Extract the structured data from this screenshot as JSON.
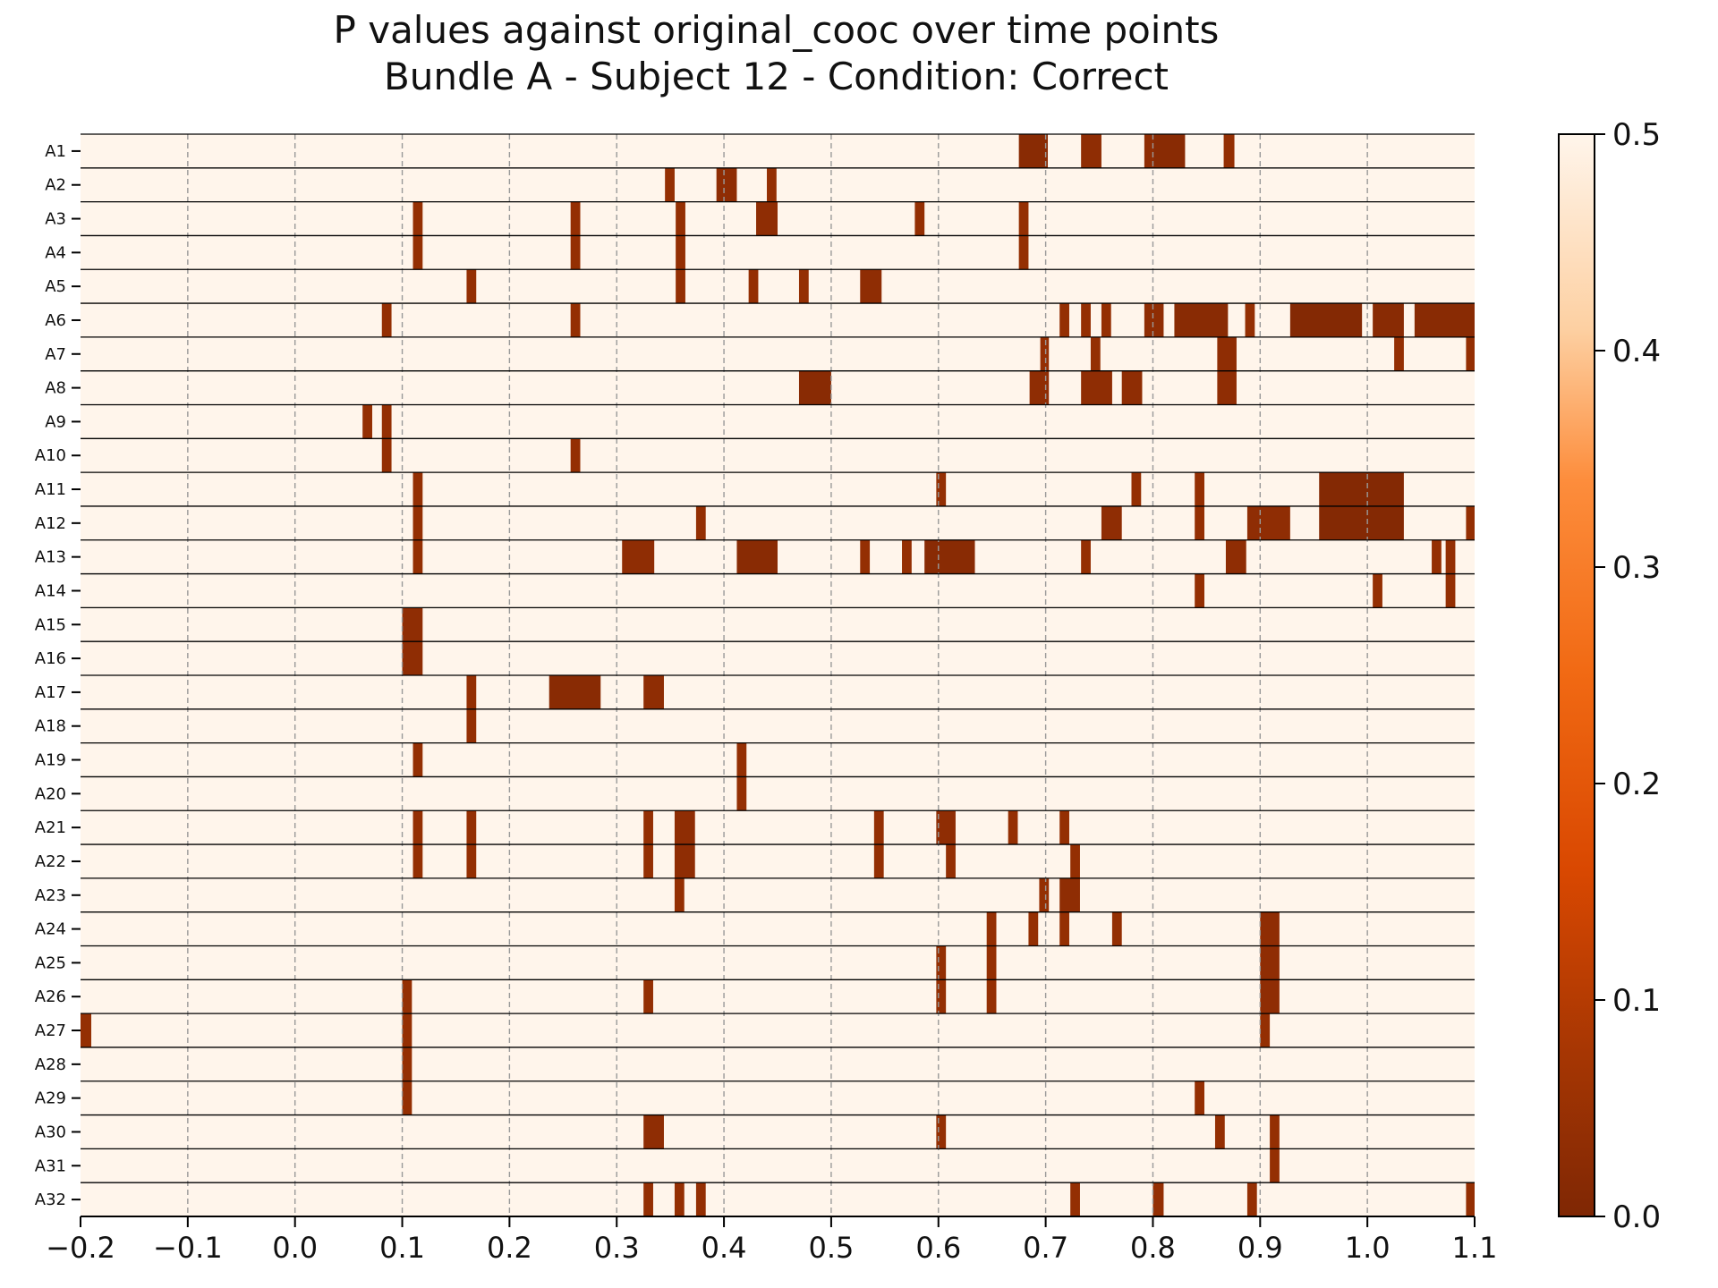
{
  "chart_data": {
    "type": "heatmap",
    "title_lines": [
      "P values against original_cooc over time points",
      "Bundle A - Subject 12 - Condition: Correct"
    ],
    "xlabel": "",
    "ylabel": "",
    "xlim": [
      -0.2,
      1.1
    ],
    "x_ticks": [
      -0.2,
      -0.1,
      0.0,
      0.1,
      0.2,
      0.3,
      0.4,
      0.5,
      0.6,
      0.7,
      0.8,
      0.9,
      1.0,
      1.1
    ],
    "x_tick_labels": [
      "−0.2",
      "−0.1",
      "0.0",
      "0.1",
      "0.2",
      "0.3",
      "0.4",
      "0.5",
      "0.6",
      "0.7",
      "0.8",
      "0.9",
      "1.0",
      "1.1"
    ],
    "grid": "dashed vertical at x ticks",
    "colormap": "Oranges_r",
    "colors": {
      "low": "#7f2704",
      "mid": "#f16913",
      "high": "#fff5eb"
    },
    "colorbar": {
      "range": [
        0.0,
        0.5
      ],
      "ticks": [
        0.0,
        0.1,
        0.2,
        0.3,
        0.4,
        0.5
      ],
      "tick_labels": [
        "0.0",
        "0.1",
        "0.2",
        "0.3",
        "0.4",
        "0.5"
      ]
    },
    "background_value": 0.5,
    "rows": [
      {
        "label": "A1",
        "segments": [
          [
            0.675,
            0.702,
            0.02
          ],
          [
            0.733,
            0.752,
            0.03
          ],
          [
            0.792,
            0.8,
            0.03
          ],
          [
            0.8,
            0.83,
            0.02
          ],
          [
            0.866,
            0.876,
            0.04
          ]
        ]
      },
      {
        "label": "A2",
        "segments": [
          [
            0.345,
            0.354,
            0.04
          ],
          [
            0.393,
            0.412,
            0.03
          ],
          [
            0.44,
            0.449,
            0.04
          ]
        ]
      },
      {
        "label": "A3",
        "segments": [
          [
            0.11,
            0.119,
            0.04
          ],
          [
            0.257,
            0.266,
            0.04
          ],
          [
            0.355,
            0.364,
            0.04
          ],
          [
            0.43,
            0.45,
            0.03
          ],
          [
            0.578,
            0.587,
            0.04
          ],
          [
            0.675,
            0.684,
            0.04
          ]
        ]
      },
      {
        "label": "A4",
        "segments": [
          [
            0.11,
            0.119,
            0.04
          ],
          [
            0.257,
            0.266,
            0.04
          ],
          [
            0.355,
            0.364,
            0.04
          ],
          [
            0.675,
            0.684,
            0.04
          ]
        ]
      },
      {
        "label": "A5",
        "segments": [
          [
            0.16,
            0.169,
            0.04
          ],
          [
            0.355,
            0.364,
            0.04
          ],
          [
            0.423,
            0.432,
            0.04
          ],
          [
            0.47,
            0.479,
            0.04
          ],
          [
            0.527,
            0.547,
            0.03
          ]
        ]
      },
      {
        "label": "A6",
        "segments": [
          [
            0.081,
            0.09,
            0.04
          ],
          [
            0.257,
            0.266,
            0.04
          ],
          [
            0.713,
            0.722,
            0.04
          ],
          [
            0.733,
            0.742,
            0.04
          ],
          [
            0.752,
            0.761,
            0.04
          ],
          [
            0.792,
            0.81,
            0.03
          ],
          [
            0.82,
            0.87,
            0.02
          ],
          [
            0.886,
            0.895,
            0.04
          ],
          [
            0.928,
            0.995,
            0.01
          ],
          [
            1.005,
            1.034,
            0.02
          ],
          [
            1.044,
            1.1,
            0.02
          ]
        ]
      },
      {
        "label": "A7",
        "segments": [
          [
            0.695,
            0.703,
            0.04
          ],
          [
            0.742,
            0.751,
            0.04
          ],
          [
            0.86,
            0.878,
            0.03
          ],
          [
            1.025,
            1.034,
            0.04
          ],
          [
            1.092,
            1.1,
            0.04
          ]
        ]
      },
      {
        "label": "A8",
        "segments": [
          [
            0.47,
            0.5,
            0.02
          ],
          [
            0.685,
            0.703,
            0.03
          ],
          [
            0.733,
            0.762,
            0.03
          ],
          [
            0.771,
            0.79,
            0.03
          ],
          [
            0.86,
            0.878,
            0.03
          ]
        ]
      },
      {
        "label": "A9",
        "segments": [
          [
            0.063,
            0.072,
            0.04
          ],
          [
            0.081,
            0.09,
            0.04
          ]
        ]
      },
      {
        "label": "A10",
        "segments": [
          [
            0.081,
            0.09,
            0.04
          ],
          [
            0.257,
            0.266,
            0.04
          ]
        ]
      },
      {
        "label": "A11",
        "segments": [
          [
            0.11,
            0.119,
            0.04
          ],
          [
            0.598,
            0.607,
            0.04
          ],
          [
            0.78,
            0.789,
            0.04
          ],
          [
            0.839,
            0.848,
            0.04
          ],
          [
            0.955,
            1.034,
            0.01
          ]
        ]
      },
      {
        "label": "A12",
        "segments": [
          [
            0.11,
            0.119,
            0.04
          ],
          [
            0.374,
            0.383,
            0.04
          ],
          [
            0.752,
            0.771,
            0.03
          ],
          [
            0.839,
            0.848,
            0.04
          ],
          [
            0.888,
            0.928,
            0.03
          ],
          [
            0.955,
            1.034,
            0.01
          ],
          [
            1.092,
            1.1,
            0.04
          ]
        ]
      },
      {
        "label": "A13",
        "segments": [
          [
            0.11,
            0.119,
            0.04
          ],
          [
            0.305,
            0.335,
            0.03
          ],
          [
            0.412,
            0.45,
            0.02
          ],
          [
            0.527,
            0.536,
            0.04
          ],
          [
            0.566,
            0.575,
            0.04
          ],
          [
            0.587,
            0.634,
            0.02
          ],
          [
            0.733,
            0.742,
            0.04
          ],
          [
            0.868,
            0.887,
            0.03
          ],
          [
            1.06,
            1.069,
            0.04
          ],
          [
            1.073,
            1.082,
            0.04
          ]
        ]
      },
      {
        "label": "A14",
        "segments": [
          [
            0.839,
            0.848,
            0.04
          ],
          [
            1.005,
            1.014,
            0.04
          ],
          [
            1.073,
            1.082,
            0.04
          ]
        ]
      },
      {
        "label": "A15",
        "segments": [
          [
            0.1,
            0.119,
            0.03
          ]
        ]
      },
      {
        "label": "A16",
        "segments": [
          [
            0.1,
            0.119,
            0.03
          ]
        ]
      },
      {
        "label": "A17",
        "segments": [
          [
            0.16,
            0.169,
            0.04
          ],
          [
            0.237,
            0.285,
            0.02
          ],
          [
            0.325,
            0.344,
            0.03
          ]
        ]
      },
      {
        "label": "A18",
        "segments": [
          [
            0.16,
            0.169,
            0.04
          ]
        ]
      },
      {
        "label": "A19",
        "segments": [
          [
            0.11,
            0.119,
            0.04
          ],
          [
            0.412,
            0.421,
            0.04
          ]
        ]
      },
      {
        "label": "A20",
        "segments": [
          [
            0.412,
            0.421,
            0.04
          ]
        ]
      },
      {
        "label": "A21",
        "segments": [
          [
            0.11,
            0.119,
            0.04
          ],
          [
            0.16,
            0.169,
            0.04
          ],
          [
            0.325,
            0.334,
            0.04
          ],
          [
            0.354,
            0.373,
            0.03
          ],
          [
            0.54,
            0.549,
            0.04
          ],
          [
            0.598,
            0.616,
            0.03
          ],
          [
            0.665,
            0.674,
            0.04
          ],
          [
            0.713,
            0.722,
            0.04
          ]
        ]
      },
      {
        "label": "A22",
        "segments": [
          [
            0.11,
            0.119,
            0.04
          ],
          [
            0.16,
            0.169,
            0.04
          ],
          [
            0.325,
            0.334,
            0.04
          ],
          [
            0.354,
            0.373,
            0.03
          ],
          [
            0.54,
            0.549,
            0.04
          ],
          [
            0.607,
            0.616,
            0.04
          ],
          [
            0.723,
            0.732,
            0.04
          ]
        ]
      },
      {
        "label": "A23",
        "segments": [
          [
            0.354,
            0.363,
            0.04
          ],
          [
            0.694,
            0.703,
            0.04
          ],
          [
            0.713,
            0.732,
            0.03
          ]
        ]
      },
      {
        "label": "A24",
        "segments": [
          [
            0.645,
            0.654,
            0.04
          ],
          [
            0.684,
            0.693,
            0.04
          ],
          [
            0.713,
            0.722,
            0.04
          ],
          [
            0.762,
            0.771,
            0.04
          ],
          [
            0.9,
            0.918,
            0.03
          ]
        ]
      },
      {
        "label": "A25",
        "segments": [
          [
            0.598,
            0.607,
            0.04
          ],
          [
            0.645,
            0.654,
            0.04
          ],
          [
            0.9,
            0.918,
            0.03
          ]
        ]
      },
      {
        "label": "A26",
        "segments": [
          [
            0.1,
            0.109,
            0.04
          ],
          [
            0.325,
            0.334,
            0.04
          ],
          [
            0.598,
            0.607,
            0.04
          ],
          [
            0.645,
            0.654,
            0.04
          ],
          [
            0.9,
            0.918,
            0.03
          ]
        ]
      },
      {
        "label": "A27",
        "segments": [
          [
            -0.2,
            -0.19,
            0.04
          ],
          [
            0.1,
            0.109,
            0.04
          ],
          [
            0.9,
            0.909,
            0.04
          ]
        ]
      },
      {
        "label": "A28",
        "segments": [
          [
            0.1,
            0.109,
            0.04
          ]
        ]
      },
      {
        "label": "A29",
        "segments": [
          [
            0.1,
            0.109,
            0.04
          ],
          [
            0.839,
            0.848,
            0.04
          ]
        ]
      },
      {
        "label": "A30",
        "segments": [
          [
            0.325,
            0.344,
            0.03
          ],
          [
            0.598,
            0.607,
            0.04
          ],
          [
            0.858,
            0.867,
            0.04
          ],
          [
            0.909,
            0.918,
            0.04
          ]
        ]
      },
      {
        "label": "A31",
        "segments": [
          [
            0.909,
            0.918,
            0.04
          ]
        ]
      },
      {
        "label": "A32",
        "segments": [
          [
            0.325,
            0.334,
            0.04
          ],
          [
            0.354,
            0.363,
            0.04
          ],
          [
            0.374,
            0.383,
            0.04
          ],
          [
            0.723,
            0.732,
            0.04
          ],
          [
            0.8,
            0.81,
            0.04
          ],
          [
            0.888,
            0.897,
            0.04
          ],
          [
            1.092,
            1.1,
            0.04
          ]
        ]
      }
    ]
  }
}
